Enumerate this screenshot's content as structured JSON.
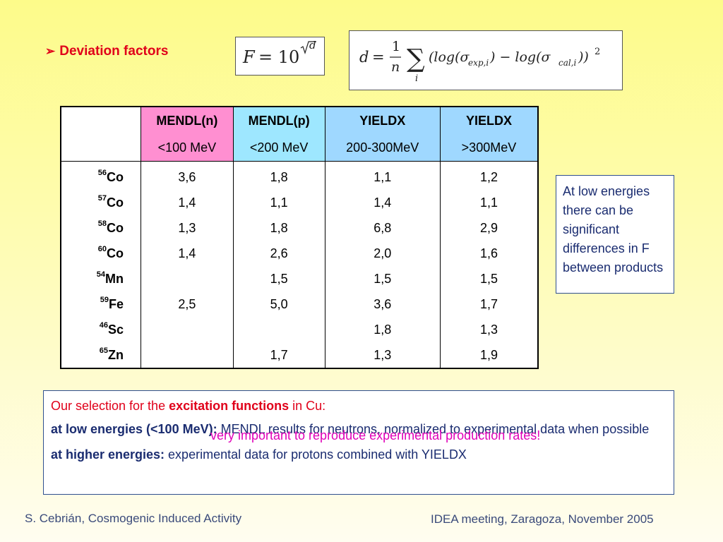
{
  "slide": {
    "title": "Deviation factors",
    "bullet_icon": "arrow-bullet-icon"
  },
  "formulas": {
    "f": "F = 10^√d",
    "d": "d = 1/n Σ_i (log(σ_exp,i) − log(σ_cal,i))^2"
  },
  "table": {
    "headers": [
      "MENDL(n)",
      "MENDL(p)",
      "YIELDX",
      "YIELDX"
    ],
    "subheaders": [
      "<100 MeV",
      "<200 MeV",
      "200-300MeV",
      ">300MeV"
    ],
    "rows": [
      {
        "mass": "56",
        "element": "Co",
        "values": [
          "3,6",
          "1,8",
          "1,1",
          "1,2"
        ]
      },
      {
        "mass": "57",
        "element": "Co",
        "values": [
          "1,4",
          "1,1",
          "1,4",
          "1,1"
        ]
      },
      {
        "mass": "58",
        "element": "Co",
        "values": [
          "1,3",
          "1,8",
          "6,8",
          "2,9"
        ]
      },
      {
        "mass": "60",
        "element": "Co",
        "values": [
          "1,4",
          "2,6",
          "2,0",
          "1,6"
        ]
      },
      {
        "mass": "54",
        "element": "Mn",
        "values": [
          "",
          "1,5",
          "1,5",
          "1,5"
        ]
      },
      {
        "mass": "59",
        "element": "Fe",
        "values": [
          "2,5",
          "5,0",
          "3,6",
          "1,7"
        ]
      },
      {
        "mass": "46",
        "element": "Sc",
        "values": [
          "",
          "",
          "1,8",
          "1,3"
        ]
      },
      {
        "mass": "65",
        "element": "Zn",
        "values": [
          "",
          "1,7",
          "1,3",
          "1,9"
        ]
      }
    ],
    "colors": {
      "mendl_n": "#ff8fd1",
      "mendl_p": "#9ee7ff",
      "yieldx": "#9fd8ff"
    }
  },
  "note": "At low energies there can be significant differences in F between products",
  "selection": {
    "line1_pre": "Our selection for the ",
    "line1_bold": "excitation functions",
    "line1_post": " in Cu:",
    "line2_bold": "at low energies (<100 MeV):",
    "line2_text": " MENDL results for neutrons, normalized to experimental data when possible",
    "line3": "very important to reproduce experimental production rates!",
    "line4_bold": "at higher energies:",
    "line4_text": " experimental data for protons combined with YIELDX"
  },
  "footer": {
    "left": "S. Cebrián, Cosmogenic Induced Activity",
    "right": "IDEA meeting, Zaragoza, November 2005"
  }
}
